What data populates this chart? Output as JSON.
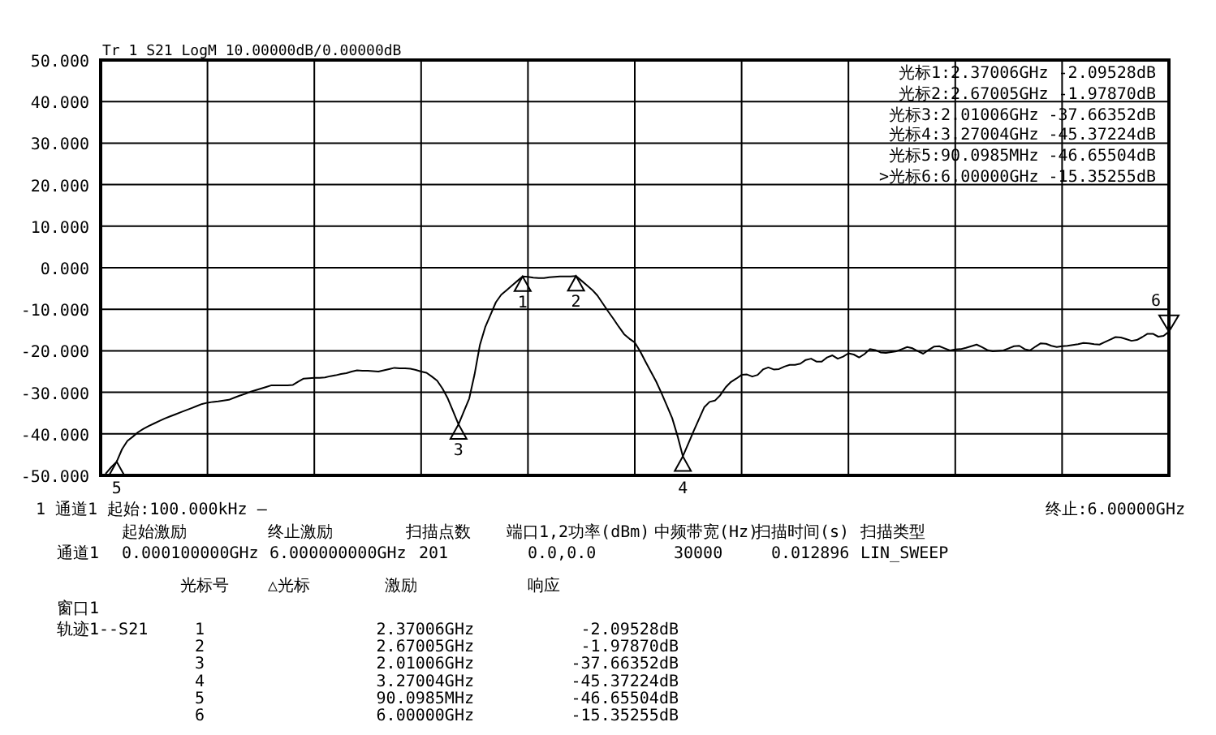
{
  "chart_data": {
    "type": "line",
    "title": "Tr 1  S21 LogM 10.00000dB/0.00000dB",
    "categories": [
      null,
      null,
      null,
      null,
      null,
      null,
      null,
      null,
      null,
      null,
      null,
      null,
      null,
      null,
      null,
      null,
      null,
      null,
      null,
      null,
      null,
      null,
      null,
      null,
      null,
      null,
      null,
      null,
      null,
      null,
      null,
      null,
      null,
      null,
      null,
      null,
      null,
      null,
      null,
      null,
      null,
      null,
      null,
      null,
      null,
      null,
      null,
      null,
      null,
      null,
      null,
      null,
      null,
      null,
      null,
      null,
      null,
      null,
      null,
      null,
      null,
      null,
      null,
      null,
      null,
      null,
      null,
      null,
      null,
      null,
      null,
      null,
      null,
      null,
      null,
      null,
      null,
      null,
      null,
      null,
      null,
      null,
      null,
      null,
      null,
      null,
      null,
      null,
      null,
      null,
      null,
      null,
      null,
      null,
      null,
      null,
      null,
      null,
      null,
      null,
      null,
      null,
      null,
      null,
      null,
      null,
      null,
      null,
      null,
      null,
      null,
      null,
      null,
      null,
      null,
      null,
      null,
      null,
      null,
      null,
      null,
      null,
      null,
      null,
      null,
      null,
      null,
      null,
      null,
      null,
      null,
      null,
      null,
      null,
      null,
      null,
      null,
      null,
      null,
      null,
      null,
      null,
      null,
      null,
      null,
      null,
      null,
      null,
      null,
      null,
      null,
      null,
      null,
      null,
      null,
      null,
      null,
      null,
      null,
      null,
      null,
      null,
      null,
      null,
      null,
      null,
      null,
      null,
      null,
      null,
      null,
      null,
      null,
      null,
      null,
      null,
      null,
      null,
      null,
      null,
      null,
      null,
      null,
      null,
      null,
      null,
      null,
      null,
      null,
      null,
      null,
      null,
      null,
      null,
      null,
      null,
      null,
      null,
      null,
      null,
      null
    ],
    "series": [
      {
        "color": "#000000",
        "values": [
          null,
          -49.5,
          -48.0,
          -46.7,
          -43.7,
          -41.7,
          -40.7,
          -39.6,
          -38.8,
          -38.1,
          -37.5,
          -36.9,
          -36.3,
          -35.8,
          -35.3,
          -34.8,
          -34.3,
          -33.8,
          -33.3,
          -32.8,
          -32.5,
          -32.3,
          -32.2,
          -32.0,
          -31.8,
          -31.3,
          -30.8,
          -30.4,
          -29.9,
          -29.5,
          -29.1,
          -28.7,
          -28.3,
          -28.3,
          -28.3,
          -28.3,
          -28.2,
          -27.4,
          -26.7,
          -26.6,
          -26.5,
          -26.5,
          -26.4,
          -26.1,
          -25.9,
          -25.6,
          -25.4,
          -25.0,
          -24.7,
          -24.8,
          -24.8,
          -24.9,
          -25.0,
          -24.7,
          -24.4,
          -24.1,
          -24.2,
          -24.2,
          -24.3,
          -24.6,
          -25.0,
          -25.3,
          -26.2,
          -27.2,
          -29.1,
          -31.5,
          -34.6,
          -37.7,
          -34.6,
          -31.5,
          -25.7,
          -18.6,
          -14.3,
          -11.3,
          -8.3,
          -6.5,
          -5.4,
          -4.3,
          -3.2,
          -2.1,
          -2.2,
          -2.4,
          -2.5,
          -2.5,
          -2.3,
          -2.2,
          -2.1,
          -2.1,
          -2.1,
          -2.0,
          -3.1,
          -4.2,
          -5.3,
          -6.7,
          -8.6,
          -10.5,
          -12.3,
          -14.2,
          -16.0,
          -17.1,
          -18.0,
          -20.1,
          -22.6,
          -25.0,
          -27.4,
          -30.2,
          -33.2,
          -36.2,
          -40.5,
          -45.4,
          -42.4,
          -39.4,
          -36.5,
          -33.6,
          -32.3,
          -32.0,
          -30.7,
          -28.8,
          -27.5,
          -26.7,
          -25.8,
          -25.7,
          -26.2,
          -25.8,
          -24.5,
          -24.0,
          -24.5,
          -24.4,
          -23.8,
          -23.4,
          -23.4,
          -23.1,
          -22.2,
          -21.9,
          -22.6,
          -22.6,
          -21.6,
          -21.1,
          -21.9,
          -21.4,
          -20.6,
          -20.9,
          -21.6,
          -20.8,
          -19.6,
          -19.8,
          -20.4,
          -20.5,
          -20.3,
          -20.1,
          -19.6,
          -19.1,
          -19.4,
          -20.1,
          -20.7,
          -19.8,
          -19.0,
          -18.9,
          -19.4,
          -19.9,
          -19.7,
          -19.6,
          -19.3,
          -18.9,
          -18.5,
          -19.1,
          -19.8,
          -20.1,
          -20.0,
          -19.9,
          -19.4,
          -18.9,
          -18.8,
          -19.6,
          -19.9,
          -19.0,
          -18.2,
          -18.3,
          -18.8,
          -19.1,
          -18.9,
          -18.8,
          -18.6,
          -18.4,
          -18.1,
          -18.2,
          -18.4,
          -18.5,
          -17.9,
          -17.3,
          -16.7,
          -16.8,
          -17.2,
          -17.6,
          -17.4,
          -16.7,
          -15.9,
          -15.9,
          -16.6,
          -16.4,
          -15.4
        ]
      }
    ],
    "ylim": [
      -50,
      50
    ],
    "yticks": [
      {
        "value": 50,
        "label": "50.000"
      },
      {
        "value": 40,
        "label": "40.000"
      },
      {
        "value": 30,
        "label": "30.000"
      },
      {
        "value": 20,
        "label": "20.000"
      },
      {
        "value": 10,
        "label": "10.000"
      },
      {
        "value": 0,
        "label": "0.000"
      },
      {
        "value": -10,
        "label": "-10.000"
      },
      {
        "value": -20,
        "label": "-20.000"
      },
      {
        "value": -30,
        "label": "-30.000"
      },
      {
        "value": -40,
        "label": "-40.000"
      },
      {
        "value": -50,
        "label": "-50.000"
      }
    ],
    "tick_labels": "y",
    "grid": true,
    "annotations": [
      "光标1:2.37006GHz -2.09528dB",
      "光标2:2.67005GHz -1.97870dB",
      "光标3:2.01006GHz -37.66352dB",
      "光标4:3.27004GHz -45.37224dB",
      "光标5:90.0985MHz -46.65504dB",
      ">光标6:6.00000GHz -15.35255dB",
      {
        "text": "1",
        "y": -2.1
      },
      {
        "text": "2",
        "y": -2.0
      },
      {
        "text": "3",
        "y": -37.7
      },
      {
        "text": "4",
        "y": -45.4
      },
      {
        "text": "5",
        "y": -46.7
      },
      {
        "text": "6",
        "y": -15.4
      },
      "1  通道1  起始:100.000kHz —",
      "终止:6.00000GHz",
      "起始激励",
      "终止激励",
      "扫描点数",
      "端口1,2功率(dBm)",
      "中频带宽(Hz)",
      "扫描时间(s)",
      "扫描类型",
      "通道1",
      "0.000100000GHz",
      "6.000000000GHz",
      "201",
      "0.0,0.0",
      "30000",
      "0.012896",
      "LIN_SWEEP",
      "光标号",
      "△光标",
      "激励",
      "响应",
      "窗口1",
      "轨迹1--S21",
      "1",
      "2.37006GHz",
      "-2.09528dB",
      "2",
      "2.67005GHz",
      "-1.97870dB",
      "3",
      "2.01006GHz",
      "-37.66352dB",
      "4",
      "3.27004GHz",
      "-45.37224dB",
      "5",
      "90.0985MHz",
      "-46.65504dB",
      "6",
      "6.00000GHz",
      "-15.35255dB"
    ]
  }
}
